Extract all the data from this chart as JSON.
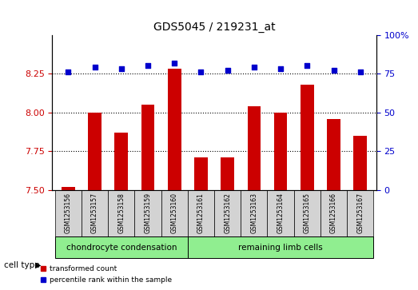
{
  "title": "GDS5045 / 219231_at",
  "samples": [
    "GSM1253156",
    "GSM1253157",
    "GSM1253158",
    "GSM1253159",
    "GSM1253160",
    "GSM1253161",
    "GSM1253162",
    "GSM1253163",
    "GSM1253164",
    "GSM1253165",
    "GSM1253166",
    "GSM1253167"
  ],
  "transformed_count": [
    7.52,
    8.0,
    7.87,
    8.05,
    8.28,
    7.71,
    7.71,
    8.04,
    8.0,
    8.18,
    7.96,
    7.85
  ],
  "percentile_rank": [
    76,
    79,
    78,
    80,
    82,
    76,
    77,
    79,
    78,
    80,
    77,
    76
  ],
  "group1_count": 5,
  "group2_count": 7,
  "group1_label": "chondrocyte condensation",
  "group2_label": "remaining limb cells",
  "cell_type_label": "cell type",
  "legend_red": "transformed count",
  "legend_blue": "percentile rank within the sample",
  "ylim_left": [
    7.5,
    8.5
  ],
  "ylim_right": [
    0,
    100
  ],
  "yticks_left": [
    7.5,
    7.75,
    8.0,
    8.25
  ],
  "yticks_right": [
    0,
    25,
    50,
    75,
    100
  ],
  "bar_color": "#cc0000",
  "dot_color": "#0000cc",
  "grid_color": "#000000",
  "bg_plot": "#ffffff",
  "bg_sample": "#d3d3d3",
  "bg_group1": "#90ee90",
  "bg_group2": "#90ee90",
  "left_axis_color": "#cc0000",
  "right_axis_color": "#0000cc"
}
